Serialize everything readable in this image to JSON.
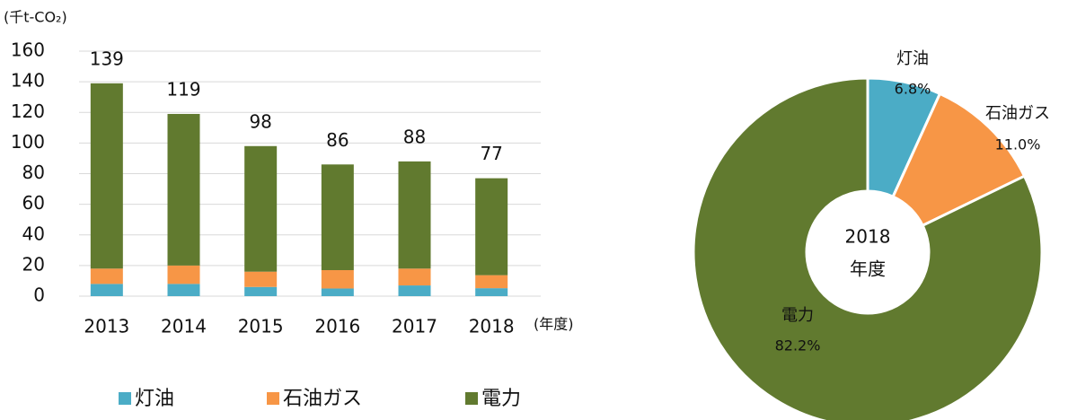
{
  "chart_data": [
    {
      "type": "bar",
      "stacked": true,
      "y_label": "(千t-CO₂)",
      "x_label": "(年度)",
      "categories": [
        "2013",
        "2014",
        "2015",
        "2016",
        "2017",
        "2018"
      ],
      "series": [
        {
          "name": "灯油",
          "color": "#4bacc6",
          "values": [
            8,
            8,
            6,
            5,
            7,
            5.2
          ]
        },
        {
          "name": "石油ガス",
          "color": "#f79646",
          "values": [
            10,
            12,
            10,
            12,
            11,
            8.5
          ]
        },
        {
          "name": "電力",
          "color": "#617a2f",
          "values": [
            121,
            99,
            82,
            69,
            70,
            63.3
          ]
        }
      ],
      "totals": [
        139,
        119,
        98,
        86,
        88,
        77
      ],
      "ylim": [
        0,
        160
      ],
      "yticks": [
        0,
        20,
        40,
        60,
        80,
        100,
        120,
        140,
        160
      ],
      "grid": true,
      "legend": "bottom"
    },
    {
      "type": "pie",
      "center_label": [
        "2018",
        "年度"
      ],
      "categories": [
        "灯油",
        "石油ガス",
        "電力"
      ],
      "colors": [
        "#4bacc6",
        "#f79646",
        "#617a2f"
      ],
      "values": [
        6.8,
        11.0,
        82.2
      ],
      "value_labels": [
        "6.8%",
        "11.0%",
        "82.2%"
      ]
    }
  ]
}
